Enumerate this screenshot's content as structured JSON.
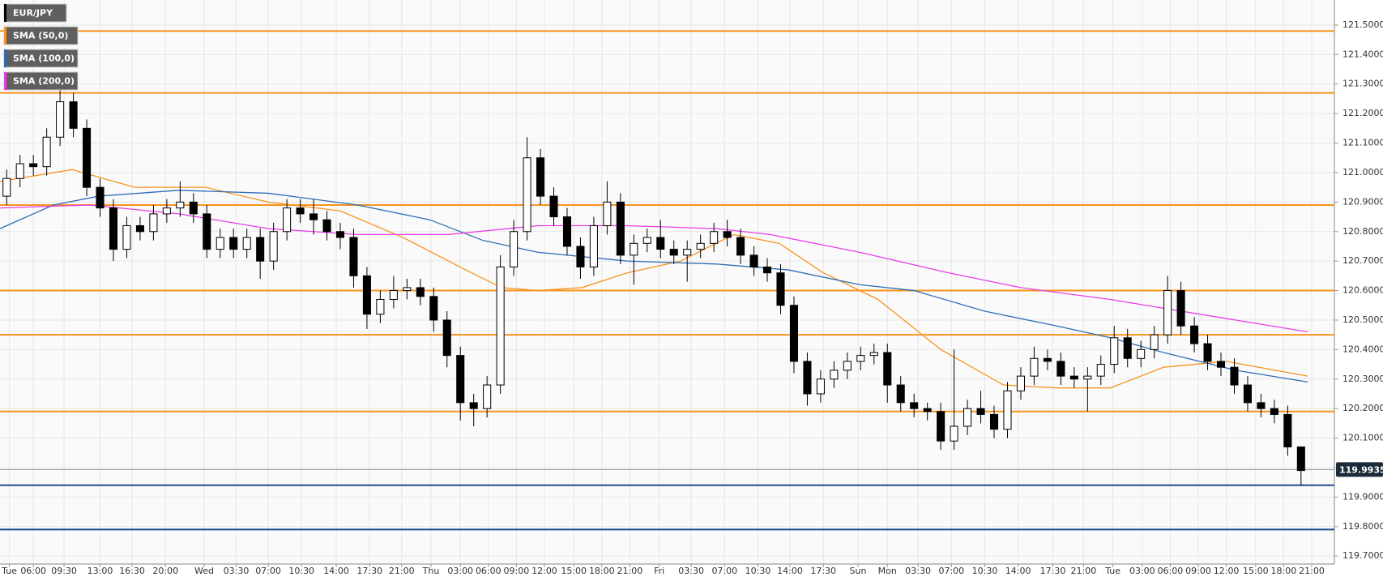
{
  "chart_data": {
    "type": "candlestick",
    "candles": {
      "name": "EUR/JPY",
      "up_color": "#ffffff",
      "down_color": "#000000",
      "open": [
        120.92,
        120.98,
        121.03,
        121.02,
        121.12,
        121.24,
        121.15,
        120.95,
        120.88,
        120.74,
        120.82,
        120.8,
        120.86,
        120.88,
        120.9,
        120.86,
        120.74,
        120.78,
        120.74,
        120.78,
        120.7,
        120.8,
        120.88,
        120.86,
        120.84,
        120.8,
        120.78,
        120.65,
        120.52,
        120.57,
        120.6,
        120.61,
        120.58,
        120.5,
        120.38,
        120.22,
        120.2,
        120.28,
        120.68,
        120.8,
        121.05,
        120.92,
        120.85,
        120.75,
        120.68,
        120.82,
        120.9,
        120.72,
        120.76,
        120.78,
        120.74,
        120.72,
        120.74,
        120.76,
        120.8,
        120.78,
        120.72,
        120.68,
        120.66,
        120.55,
        120.36,
        120.25,
        120.3,
        120.33,
        120.36,
        120.38,
        120.39,
        120.28,
        120.22,
        120.2,
        120.19,
        120.09,
        120.14,
        120.2,
        120.18,
        120.13,
        120.26,
        120.31,
        120.37,
        120.36,
        120.31,
        120.3,
        120.31,
        120.35,
        120.44,
        120.37,
        120.4,
        120.45,
        120.6,
        120.48,
        120.42,
        120.36,
        120.34,
        120.28,
        120.22,
        120.2,
        120.18,
        120.07
      ],
      "high": [
        121.01,
        121.06,
        121.06,
        121.15,
        121.28,
        121.27,
        121.18,
        120.98,
        120.91,
        120.85,
        120.85,
        120.89,
        120.91,
        120.97,
        120.93,
        120.89,
        120.81,
        120.81,
        120.81,
        120.81,
        120.83,
        120.91,
        120.91,
        120.91,
        120.87,
        120.83,
        120.81,
        120.68,
        120.6,
        120.65,
        120.64,
        120.64,
        120.61,
        120.53,
        120.41,
        120.25,
        120.31,
        120.72,
        120.84,
        121.12,
        121.08,
        120.95,
        120.88,
        120.78,
        120.85,
        120.97,
        120.93,
        120.79,
        120.81,
        120.84,
        120.77,
        120.77,
        120.79,
        120.83,
        120.84,
        120.81,
        120.75,
        120.71,
        120.69,
        120.58,
        120.39,
        120.33,
        120.36,
        120.39,
        120.41,
        120.42,
        120.42,
        120.31,
        120.25,
        120.22,
        120.22,
        120.4,
        120.23,
        120.26,
        120.21,
        120.29,
        120.34,
        120.41,
        120.4,
        120.39,
        120.34,
        120.34,
        120.38,
        120.48,
        120.47,
        120.43,
        120.48,
        120.65,
        120.63,
        120.51,
        120.45,
        120.39,
        120.37,
        120.31,
        120.25,
        120.23,
        120.21,
        120.01
      ],
      "low": [
        120.89,
        120.95,
        120.99,
        120.99,
        121.09,
        121.12,
        120.92,
        120.85,
        120.7,
        120.71,
        120.77,
        120.77,
        120.83,
        120.85,
        120.83,
        120.71,
        120.71,
        120.71,
        120.71,
        120.64,
        120.67,
        120.77,
        120.83,
        120.79,
        120.77,
        120.74,
        120.61,
        120.47,
        120.49,
        120.54,
        120.57,
        120.55,
        120.46,
        120.34,
        120.16,
        120.14,
        120.17,
        120.25,
        120.65,
        120.77,
        120.89,
        120.82,
        120.72,
        120.64,
        120.65,
        120.79,
        120.69,
        120.62,
        120.73,
        120.71,
        120.69,
        120.63,
        120.71,
        120.73,
        120.75,
        120.69,
        120.65,
        120.63,
        120.52,
        120.32,
        120.21,
        120.22,
        120.27,
        120.3,
        120.33,
        120.35,
        120.22,
        120.19,
        120.17,
        120.16,
        120.06,
        120.06,
        120.11,
        120.15,
        120.1,
        120.1,
        120.23,
        120.28,
        120.33,
        120.28,
        120.27,
        120.19,
        120.28,
        120.32,
        120.34,
        120.34,
        120.37,
        120.42,
        120.45,
        120.39,
        120.33,
        120.31,
        120.25,
        120.19,
        120.17,
        120.15,
        120.04,
        119.94
      ],
      "close": [
        120.98,
        121.03,
        121.02,
        121.12,
        121.24,
        121.15,
        120.95,
        120.88,
        120.74,
        120.82,
        120.8,
        120.86,
        120.88,
        120.9,
        120.86,
        120.74,
        120.78,
        120.74,
        120.78,
        120.7,
        120.8,
        120.88,
        120.86,
        120.84,
        120.8,
        120.78,
        120.65,
        120.52,
        120.57,
        120.6,
        120.61,
        120.58,
        120.5,
        120.38,
        120.22,
        120.2,
        120.28,
        120.68,
        120.8,
        121.05,
        120.92,
        120.85,
        120.75,
        120.68,
        120.82,
        120.9,
        120.72,
        120.76,
        120.78,
        120.74,
        120.72,
        120.74,
        120.76,
        120.8,
        120.78,
        120.72,
        120.68,
        120.66,
        120.55,
        120.36,
        120.25,
        120.3,
        120.33,
        120.36,
        120.38,
        120.39,
        120.28,
        120.22,
        120.2,
        120.19,
        120.09,
        120.14,
        120.2,
        120.18,
        120.13,
        120.26,
        120.31,
        120.37,
        120.36,
        120.31,
        120.3,
        120.31,
        120.35,
        120.44,
        120.37,
        120.4,
        120.45,
        120.6,
        120.48,
        120.42,
        120.36,
        120.34,
        120.28,
        120.22,
        120.2,
        120.18,
        120.07,
        119.99
      ]
    },
    "series": [
      {
        "name": "SMA (50,0)",
        "color": "#f7931e",
        "x": [
          0,
          5.4,
          10.1,
          15.4,
          20.1,
          25.5,
          30.2,
          34.9,
          37.6,
          40.3,
          43.6,
          47.0,
          51.0,
          55.0,
          58.4,
          61.7,
          65.8,
          70.5,
          75.2,
          79.2,
          83.2,
          87.2,
          91.9,
          98.0
        ],
        "values": [
          120.97,
          121.01,
          120.95,
          120.95,
          120.9,
          120.87,
          120.78,
          120.67,
          120.61,
          120.6,
          120.61,
          120.66,
          120.7,
          120.79,
          120.76,
          120.66,
          120.57,
          120.4,
          120.28,
          120.27,
          120.27,
          120.34,
          120.36,
          120.31
        ]
      },
      {
        "name": "SMA (100,0)",
        "color": "#2f6db5",
        "x": [
          0,
          4.0,
          7.4,
          13.4,
          20.1,
          26.8,
          32.2,
          36.2,
          40.3,
          47.0,
          53.7,
          59.1,
          64.4,
          68.5,
          73.8,
          79.2,
          83.2,
          87.2,
          92.6,
          98.0
        ],
        "values": [
          120.81,
          120.89,
          120.92,
          120.94,
          120.93,
          120.89,
          120.84,
          120.77,
          120.73,
          120.7,
          120.69,
          120.67,
          120.62,
          120.6,
          120.53,
          120.48,
          120.44,
          120.39,
          120.33,
          120.29
        ]
      },
      {
        "name": "SMA (200,0)",
        "color": "#e83ee8",
        "x": [
          0,
          6.7,
          13.4,
          20.1,
          26.8,
          33.6,
          40.3,
          47.0,
          53.7,
          57.7,
          64.4,
          71.1,
          76.5,
          83.2,
          89.9,
          98.0
        ],
        "values": [
          120.88,
          120.89,
          120.86,
          120.81,
          120.79,
          120.79,
          120.82,
          120.82,
          120.81,
          120.79,
          120.73,
          120.66,
          120.61,
          120.57,
          120.52,
          120.46
        ]
      }
    ],
    "levels": [
      {
        "value": 121.48,
        "color": "#f7931e"
      },
      {
        "value": 121.27,
        "color": "#f7931e"
      },
      {
        "value": 120.89,
        "color": "#f7931e"
      },
      {
        "value": 120.6,
        "color": "#f7931e"
      },
      {
        "value": 120.45,
        "color": "#f7931e"
      },
      {
        "value": 120.19,
        "color": "#f7931e"
      },
      {
        "value": 119.94,
        "color": "#1f4e8c"
      },
      {
        "value": 119.79,
        "color": "#1f4e8c"
      }
    ],
    "last_price": {
      "value": 119.9935,
      "label": "119.99350"
    },
    "xlim": [
      0,
      100
    ],
    "xticks": [
      {
        "value": 0.7,
        "label": "Tue"
      },
      {
        "value": 2.5,
        "label": "06:00"
      },
      {
        "value": 4.8,
        "label": "09:30"
      },
      {
        "value": 7.5,
        "label": "13:00"
      },
      {
        "value": 9.9,
        "label": "16:30"
      },
      {
        "value": 12.4,
        "label": "20:00"
      },
      {
        "value": 15.3,
        "label": "Wed"
      },
      {
        "value": 17.7,
        "label": "03:30"
      },
      {
        "value": 20.1,
        "label": "07:00"
      },
      {
        "value": 22.6,
        "label": "10:30"
      },
      {
        "value": 25.2,
        "label": "14:00"
      },
      {
        "value": 27.7,
        "label": "17:30"
      },
      {
        "value": 30.1,
        "label": "21:00"
      },
      {
        "value": 32.3,
        "label": "Thu"
      },
      {
        "value": 34.5,
        "label": "03:00"
      },
      {
        "value": 36.6,
        "label": "06:00"
      },
      {
        "value": 38.7,
        "label": "09:00"
      },
      {
        "value": 40.8,
        "label": "12:00"
      },
      {
        "value": 43.0,
        "label": "15:00"
      },
      {
        "value": 45.1,
        "label": "18:00"
      },
      {
        "value": 47.2,
        "label": "21:00"
      },
      {
        "value": 49.4,
        "label": "Fri"
      },
      {
        "value": 51.8,
        "label": "03:30"
      },
      {
        "value": 54.3,
        "label": "07:00"
      },
      {
        "value": 56.8,
        "label": "10:30"
      },
      {
        "value": 59.2,
        "label": "14:00"
      },
      {
        "value": 61.7,
        "label": "17:30"
      },
      {
        "value": 64.3,
        "label": "Sun"
      },
      {
        "value": 66.5,
        "label": "Mon"
      },
      {
        "value": 68.8,
        "label": "03:30"
      },
      {
        "value": 71.3,
        "label": "07:00"
      },
      {
        "value": 73.8,
        "label": "10:30"
      },
      {
        "value": 76.3,
        "label": "14:00"
      },
      {
        "value": 78.9,
        "label": "17:30"
      },
      {
        "value": 81.2,
        "label": "21:00"
      },
      {
        "value": 83.4,
        "label": "Tue"
      },
      {
        "value": 85.6,
        "label": "03:00"
      },
      {
        "value": 87.7,
        "label": "06:00"
      },
      {
        "value": 89.8,
        "label": "09:00"
      },
      {
        "value": 91.9,
        "label": "12:00"
      },
      {
        "value": 94.1,
        "label": "15:00"
      },
      {
        "value": 96.2,
        "label": "18:00"
      },
      {
        "value": 98.3,
        "label": "21:00"
      }
    ],
    "ylim": [
      119.673,
      121.585
    ],
    "yticks": [
      {
        "value": 119.7,
        "label": "119.7000"
      },
      {
        "value": 119.8,
        "label": "119.8000"
      },
      {
        "value": 119.9,
        "label": "119.9000"
      },
      {
        "value": 120.0,
        "label": "120.0000"
      },
      {
        "value": 120.1,
        "label": "120.1000"
      },
      {
        "value": 120.2,
        "label": "120.2000"
      },
      {
        "value": 120.3,
        "label": "120.3000"
      },
      {
        "value": 120.4,
        "label": "120.4000"
      },
      {
        "value": 120.5,
        "label": "120.5000"
      },
      {
        "value": 120.6,
        "label": "120.6000"
      },
      {
        "value": 120.7,
        "label": "120.7000"
      },
      {
        "value": 120.8,
        "label": "120.8000"
      },
      {
        "value": 120.9,
        "label": "120.9000"
      },
      {
        "value": 121.0,
        "label": "121.0000"
      },
      {
        "value": 121.1,
        "label": "121.1000"
      },
      {
        "value": 121.2,
        "label": "121.2000"
      },
      {
        "value": 121.3,
        "label": "121.3000"
      },
      {
        "value": 121.4,
        "label": "121.4000"
      },
      {
        "value": 121.5,
        "label": "121.5000"
      }
    ],
    "grid": true
  }
}
